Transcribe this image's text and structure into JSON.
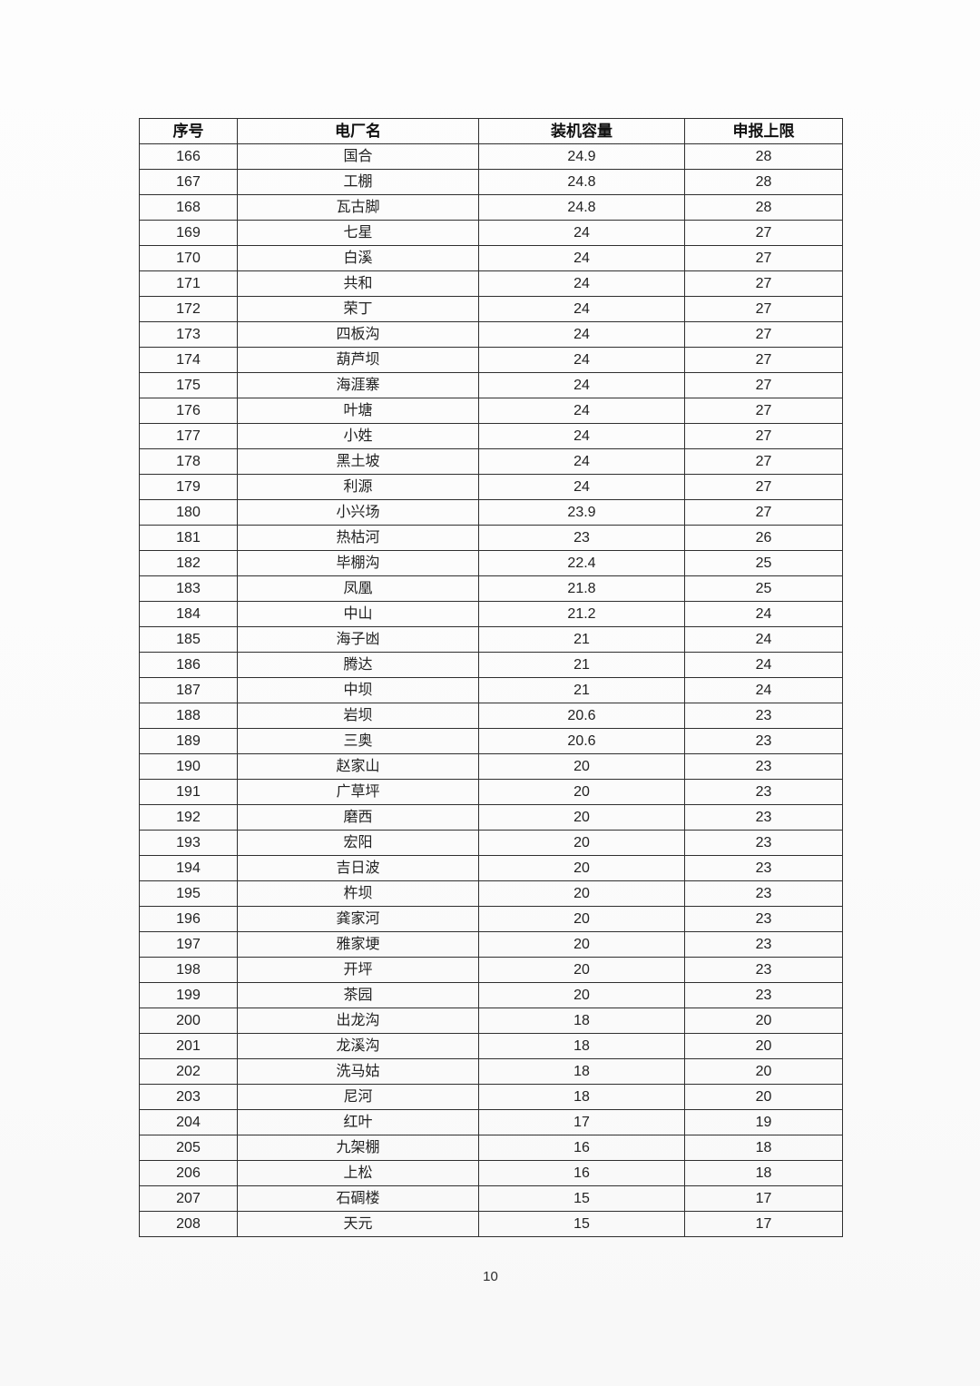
{
  "page": {
    "number": "10"
  },
  "table": {
    "headers": [
      "序号",
      "电厂名",
      "装机容量",
      "申报上限"
    ],
    "rows": [
      [
        "166",
        "国合",
        "24.9",
        "28"
      ],
      [
        "167",
        "工棚",
        "24.8",
        "28"
      ],
      [
        "168",
        "瓦古脚",
        "24.8",
        "28"
      ],
      [
        "169",
        "七星",
        "24",
        "27"
      ],
      [
        "170",
        "白溪",
        "24",
        "27"
      ],
      [
        "171",
        "共和",
        "24",
        "27"
      ],
      [
        "172",
        "荣丁",
        "24",
        "27"
      ],
      [
        "173",
        "四板沟",
        "24",
        "27"
      ],
      [
        "174",
        "葫芦坝",
        "24",
        "27"
      ],
      [
        "175",
        "海涯寨",
        "24",
        "27"
      ],
      [
        "176",
        "叶塘",
        "24",
        "27"
      ],
      [
        "177",
        "小姓",
        "24",
        "27"
      ],
      [
        "178",
        "黑土坡",
        "24",
        "27"
      ],
      [
        "179",
        "利源",
        "24",
        "27"
      ],
      [
        "180",
        "小兴场",
        "23.9",
        "27"
      ],
      [
        "181",
        "热枯河",
        "23",
        "26"
      ],
      [
        "182",
        "毕棚沟",
        "22.4",
        "25"
      ],
      [
        "183",
        "凤凰",
        "21.8",
        "25"
      ],
      [
        "184",
        "中山",
        "21.2",
        "24"
      ],
      [
        "185",
        "海子凼",
        "21",
        "24"
      ],
      [
        "186",
        "腾达",
        "21",
        "24"
      ],
      [
        "187",
        "中坝",
        "21",
        "24"
      ],
      [
        "188",
        "岩坝",
        "20.6",
        "23"
      ],
      [
        "189",
        "三奥",
        "20.6",
        "23"
      ],
      [
        "190",
        "赵家山",
        "20",
        "23"
      ],
      [
        "191",
        "广草坪",
        "20",
        "23"
      ],
      [
        "192",
        "磨西",
        "20",
        "23"
      ],
      [
        "193",
        "宏阳",
        "20",
        "23"
      ],
      [
        "194",
        "吉日波",
        "20",
        "23"
      ],
      [
        "195",
        "杵坝",
        "20",
        "23"
      ],
      [
        "196",
        "龚家河",
        "20",
        "23"
      ],
      [
        "197",
        "雅家埂",
        "20",
        "23"
      ],
      [
        "198",
        "开坪",
        "20",
        "23"
      ],
      [
        "199",
        "茶园",
        "20",
        "23"
      ],
      [
        "200",
        "出龙沟",
        "18",
        "20"
      ],
      [
        "201",
        "龙溪沟",
        "18",
        "20"
      ],
      [
        "202",
        "洗马姑",
        "18",
        "20"
      ],
      [
        "203",
        "尼河",
        "18",
        "20"
      ],
      [
        "204",
        "红叶",
        "17",
        "19"
      ],
      [
        "205",
        "九架棚",
        "16",
        "18"
      ],
      [
        "206",
        "上松",
        "16",
        "18"
      ],
      [
        "207",
        "石碉楼",
        "15",
        "17"
      ],
      [
        "208",
        "天元",
        "15",
        "17"
      ]
    ]
  }
}
